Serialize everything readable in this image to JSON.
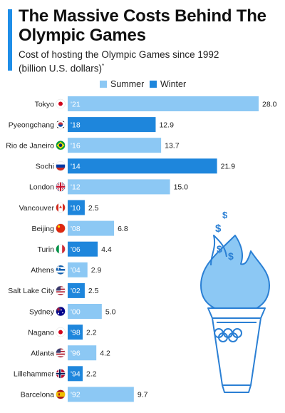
{
  "title": "The Massive Costs Behind The Olympic Games",
  "subtitle": "Cost of hosting the Olympic Games since 1992 (billion U.S. dollars)",
  "subtitle_marker": "*",
  "colors": {
    "accent": "#1f8ee8",
    "summer": "#8cc8f4",
    "winter": "#1e86dc",
    "text": "#222222"
  },
  "chart_data": {
    "type": "bar",
    "orientation": "horizontal",
    "title": "The Massive Costs Behind The Olympic Games",
    "subtitle": "Cost of hosting the Olympic Games since 1992 (billion U.S. dollars)",
    "legend": {
      "placement": "top",
      "entries": [
        "Summer",
        "Winter"
      ]
    },
    "xlim": [
      0,
      28
    ],
    "grid": false,
    "categories": [
      "Tokyo",
      "Pyeongchang",
      "Rio de Janeiro",
      "Sochi",
      "London",
      "Vancouver",
      "Beijing",
      "Turin",
      "Athens",
      "Salt Lake City",
      "Sydney",
      "Nagano",
      "Atlanta",
      "Lillehammer",
      "Barcelona"
    ],
    "year_labels": [
      "'21",
      "'18",
      "'16",
      "'14",
      "'12",
      "'10",
      "'08",
      "'06",
      "'04",
      "'02",
      "'00",
      "'98",
      "'96",
      "'94",
      "'92"
    ],
    "season": [
      "Summer",
      "Winter",
      "Summer",
      "Winter",
      "Summer",
      "Winter",
      "Summer",
      "Winter",
      "Summer",
      "Winter",
      "Summer",
      "Winter",
      "Summer",
      "Winter",
      "Summer"
    ],
    "values": [
      28.0,
      12.9,
      13.7,
      21.9,
      15.0,
      2.5,
      6.8,
      4.4,
      2.9,
      2.5,
      5.0,
      2.2,
      4.2,
      2.2,
      9.7
    ],
    "value_labels": [
      "28.0",
      "12.9",
      "13.7",
      "21.9",
      "15.0",
      "2.5",
      "6.8",
      "4.4",
      "2.9",
      "2.5",
      "5.0",
      "2.2",
      "4.2",
      "2.2",
      "9.7"
    ],
    "flags": [
      "japan-flag",
      "south-korea-flag",
      "brazil-flag",
      "russia-flag",
      "uk-flag",
      "canada-flag",
      "china-flag",
      "italy-flag",
      "greece-flag",
      "usa-flag",
      "australia-flag",
      "japan-flag",
      "usa-flag",
      "norway-flag",
      "spain-flag"
    ]
  },
  "illustration": {
    "icon": "olympic-torch-icon"
  }
}
